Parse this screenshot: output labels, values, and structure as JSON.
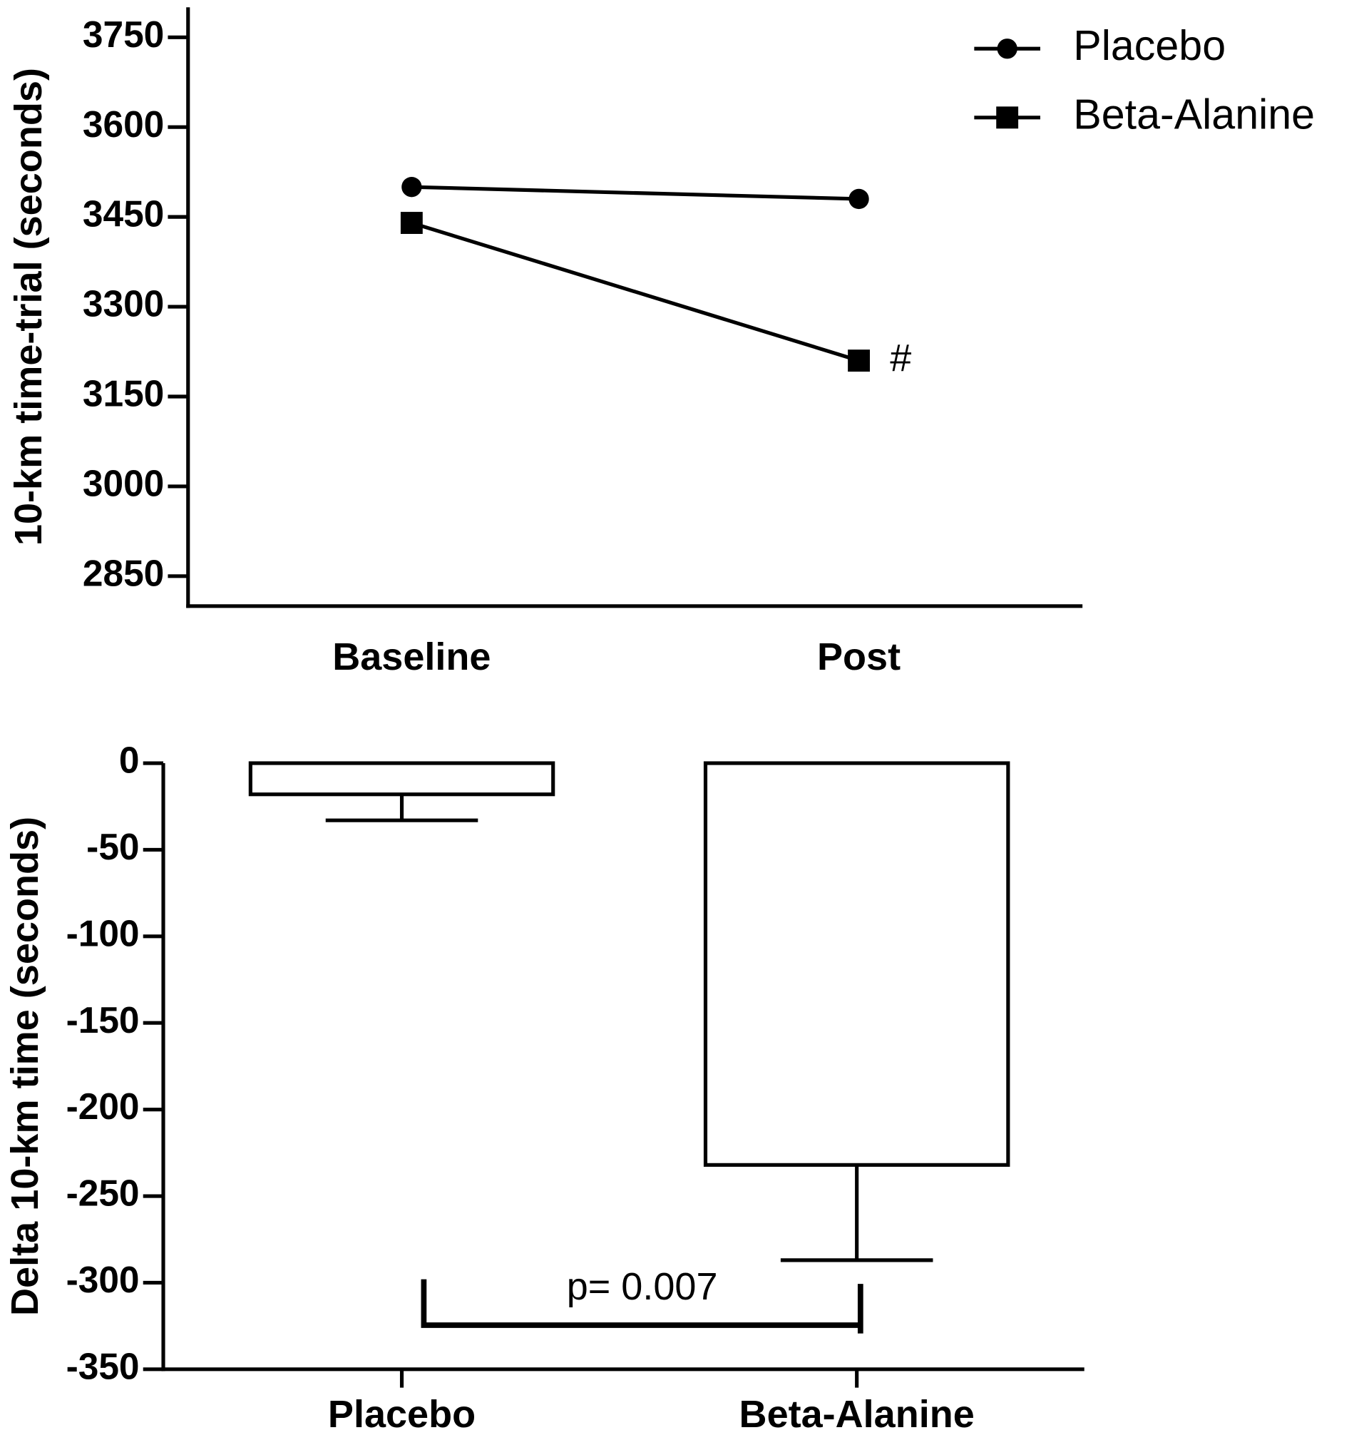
{
  "chart_data": [
    {
      "type": "line",
      "y_label": "10-km time-trial (seconds)",
      "categories": [
        "Baseline",
        "Post"
      ],
      "series": [
        {
          "name": "Placebo",
          "color": "#000000",
          "marker": "circle",
          "values": [
            3500,
            3480
          ]
        },
        {
          "name": "Beta-Alanine",
          "color": "#000000",
          "marker": "square",
          "values": [
            3440,
            3210
          ]
        }
      ],
      "annotation": "#",
      "ylim": [
        2800,
        3800
      ],
      "yticks": [
        2850,
        3000,
        3150,
        3300,
        3450,
        3600,
        3750
      ],
      "legend": "upper right"
    },
    {
      "type": "bar",
      "y_label": "Delta 10-km time (seconds)",
      "categories": [
        "Placebo",
        "Beta-Alanine"
      ],
      "values": [
        -18,
        -232
      ],
      "errors": [
        15,
        55
      ],
      "color": "#ffffff",
      "annotation": "p= 0.007",
      "ylim": [
        -350,
        0
      ],
      "yticks": [
        -350,
        -300,
        -250,
        -200,
        -150,
        -100,
        -50,
        0
      ]
    }
  ]
}
